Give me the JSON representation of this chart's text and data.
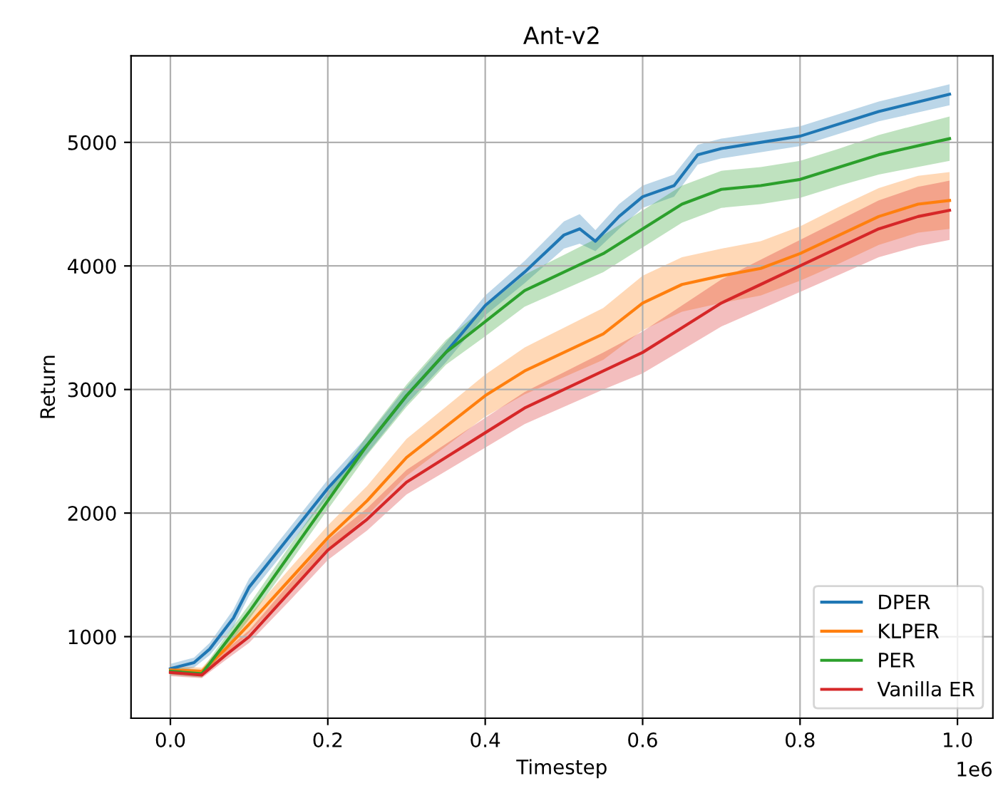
{
  "chart_data": {
    "type": "line",
    "title": "Ant-v2",
    "xlabel": "Timestep",
    "ylabel": "Return",
    "annotations": [
      "1e6"
    ],
    "xlim": [
      -0.05,
      1.045
    ],
    "ylim": [
      340,
      5700
    ],
    "xticks": [
      {
        "value": 0,
        "label": "0.0"
      },
      0.2,
      0.4,
      0.6,
      0.8,
      {
        "value": 1,
        "label": "1.0"
      }
    ],
    "yticks": [
      1000,
      2000,
      3000,
      4000,
      5000
    ],
    "grid": true,
    "legend": "bottom right",
    "marker": "none",
    "line_style": "solid",
    "series": [
      {
        "name": "DPER",
        "color": "#1f77b4",
        "x": [
          0,
          0.03,
          0.05,
          0.08,
          0.1,
          0.15,
          0.2,
          0.25,
          0.3,
          0.35,
          0.4,
          0.45,
          0.5,
          0.52,
          0.54,
          0.57,
          0.6,
          0.64,
          0.67,
          0.7,
          0.8,
          0.9,
          0.99
        ],
        "values": [
          740,
          790,
          900,
          1150,
          1400,
          1800,
          2200,
          2550,
          2950,
          3300,
          3680,
          3950,
          4250,
          4300,
          4200,
          4400,
          4560,
          4650,
          4900,
          4950,
          5050,
          5250,
          5390
        ],
        "lower": [
          700,
          750,
          850,
          1080,
          1330,
          1730,
          2130,
          2480,
          2880,
          3220,
          3600,
          3860,
          4140,
          4180,
          4120,
          4300,
          4470,
          4560,
          4820,
          4870,
          4970,
          5170,
          5300
        ],
        "upper": [
          780,
          830,
          950,
          1220,
          1470,
          1870,
          2270,
          2620,
          3020,
          3380,
          3760,
          4040,
          4360,
          4420,
          4290,
          4500,
          4650,
          4740,
          4980,
          5030,
          5130,
          5330,
          5470
        ]
      },
      {
        "name": "KLPER",
        "color": "#ff7f0e",
        "x": [
          0,
          0.04,
          0.07,
          0.1,
          0.15,
          0.2,
          0.25,
          0.3,
          0.35,
          0.4,
          0.45,
          0.5,
          0.55,
          0.6,
          0.65,
          0.7,
          0.75,
          0.8,
          0.85,
          0.9,
          0.95,
          0.99
        ],
        "values": [
          730,
          720,
          900,
          1100,
          1450,
          1800,
          2100,
          2450,
          2700,
          2950,
          3150,
          3300,
          3450,
          3700,
          3850,
          3920,
          3980,
          4100,
          4250,
          4400,
          4500,
          4530
        ],
        "lower": [
          700,
          690,
          850,
          1030,
          1360,
          1700,
          1980,
          2300,
          2540,
          2780,
          2960,
          3100,
          3240,
          3480,
          3630,
          3700,
          3760,
          3880,
          4020,
          4170,
          4270,
          4300
        ],
        "upper": [
          760,
          750,
          950,
          1170,
          1540,
          1900,
          2220,
          2600,
          2860,
          3120,
          3340,
          3500,
          3660,
          3920,
          4070,
          4140,
          4200,
          4320,
          4480,
          4630,
          4730,
          4760
        ]
      },
      {
        "name": "PER",
        "color": "#2ca02c",
        "x": [
          0,
          0.04,
          0.07,
          0.1,
          0.15,
          0.2,
          0.25,
          0.3,
          0.35,
          0.4,
          0.45,
          0.5,
          0.55,
          0.6,
          0.65,
          0.7,
          0.75,
          0.8,
          0.85,
          0.9,
          0.99
        ],
        "values": [
          720,
          700,
          950,
          1200,
          1650,
          2100,
          2550,
          2950,
          3300,
          3550,
          3800,
          3950,
          4100,
          4300,
          4500,
          4620,
          4650,
          4700,
          4800,
          4900,
          5030
        ],
        "lower": [
          690,
          670,
          900,
          1140,
          1580,
          2030,
          2470,
          2860,
          3200,
          3430,
          3670,
          3810,
          3950,
          4150,
          4350,
          4470,
          4500,
          4550,
          4650,
          4740,
          4850
        ],
        "upper": [
          750,
          730,
          1000,
          1260,
          1720,
          2170,
          2630,
          3040,
          3400,
          3670,
          3930,
          4090,
          4250,
          4450,
          4650,
          4770,
          4800,
          4850,
          4950,
          5060,
          5210
        ]
      },
      {
        "name": "Vanilla ER",
        "color": "#d62728",
        "x": [
          0,
          0.04,
          0.07,
          0.1,
          0.15,
          0.2,
          0.25,
          0.3,
          0.35,
          0.4,
          0.45,
          0.5,
          0.55,
          0.6,
          0.65,
          0.7,
          0.75,
          0.8,
          0.85,
          0.9,
          0.95,
          0.99
        ],
        "values": [
          710,
          690,
          850,
          1000,
          1350,
          1700,
          1950,
          2250,
          2450,
          2650,
          2850,
          3000,
          3150,
          3300,
          3500,
          3700,
          3850,
          4000,
          4150,
          4300,
          4400,
          4450
        ],
        "lower": [
          680,
          665,
          810,
          950,
          1280,
          1620,
          1860,
          2150,
          2340,
          2530,
          2720,
          2860,
          3000,
          3130,
          3320,
          3510,
          3650,
          3790,
          3930,
          4070,
          4160,
          4210
        ],
        "upper": [
          740,
          715,
          890,
          1050,
          1420,
          1780,
          2040,
          2350,
          2560,
          2770,
          2980,
          3140,
          3300,
          3470,
          3680,
          3890,
          4050,
          4210,
          4370,
          4530,
          4640,
          4690
        ]
      }
    ]
  }
}
